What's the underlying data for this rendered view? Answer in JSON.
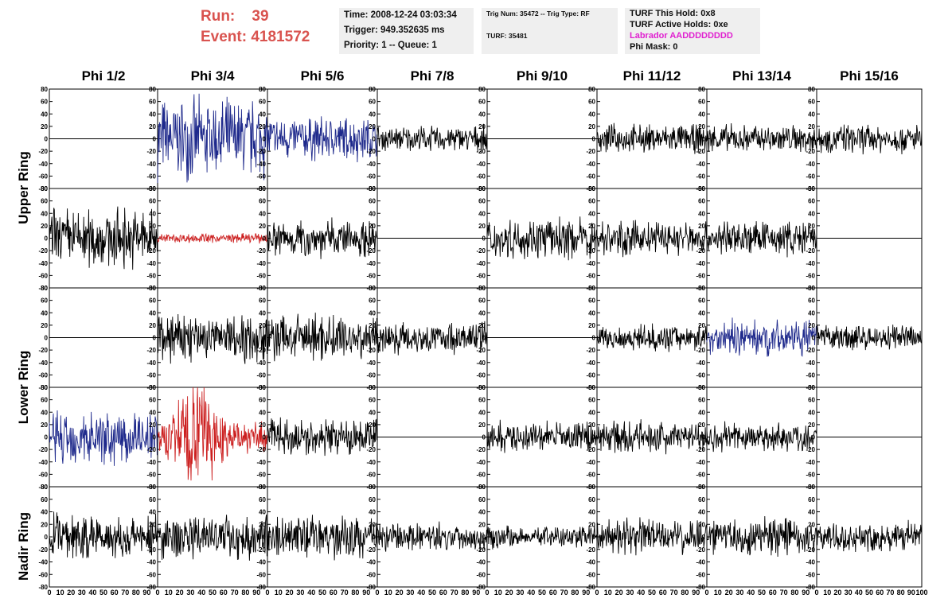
{
  "header": {
    "run_label": "Run:",
    "run_value": "39",
    "event_label": "Event:",
    "event_value": "4181572",
    "time": "Time: 2008-12-24 03:03:34",
    "trigger": "Trigger: 949.352635 ms",
    "priority": "Priority: 1 -- Queue: 1",
    "trig_num": "Trig Num: 35472 -- Trig Type: RF",
    "turf": "TURF: 35481",
    "turf_this_hold": "TURF This Hold: 0x8",
    "turf_active_holds": "TURF Active Holds: 0xe",
    "labrador": "Labrador AADDDDDDDD",
    "phi_mask": "Phi Mask: 0"
  },
  "columns": [
    "Phi 1/2",
    "Phi 3/4",
    "Phi 5/6",
    "Phi 7/8",
    "Phi 9/10",
    "Phi 11/12",
    "Phi 13/14",
    "Phi 15/16"
  ],
  "row_labels": [
    "Upper Ring",
    "Lower Ring",
    "Nadir Ring"
  ],
  "colors": {
    "black": "#000000",
    "blue": "#1f2a8c",
    "red": "#cc2020",
    "title_red": "#d9534f",
    "magenta": "#e020d0"
  },
  "chart_data": {
    "type": "line",
    "x_range": [
      0,
      100
    ],
    "ylim": [
      -80,
      80
    ],
    "y_ticks": [
      -80,
      -60,
      -40,
      -20,
      0,
      20,
      40,
      60,
      80
    ],
    "x_tick_labels": [
      "0",
      "10",
      "20",
      "30",
      "40",
      "50",
      "60",
      "70",
      "80",
      "90",
      "100"
    ],
    "panels": [
      [
        {
          "c": "black",
          "amp": 0
        },
        {
          "c": "blue",
          "amp": 50
        },
        {
          "c": "blue",
          "amp": 28
        },
        {
          "c": "black",
          "amp": 16
        },
        {
          "c": "black",
          "amp": 0
        },
        {
          "c": "black",
          "amp": 18
        },
        {
          "c": "black",
          "amp": 18
        },
        {
          "c": "black",
          "amp": 18
        }
      ],
      [
        {
          "c": "black",
          "amp": 38
        },
        {
          "c": "red",
          "amp": 6
        },
        {
          "c": "black",
          "amp": 24
        },
        {
          "c": "black",
          "amp": 0
        },
        {
          "c": "black",
          "amp": 25
        },
        {
          "c": "black",
          "amp": 22
        },
        {
          "c": "black",
          "amp": 22
        },
        {
          "c": "black",
          "amp": 0
        }
      ],
      [
        {
          "c": "black",
          "amp": 0
        },
        {
          "c": "black",
          "amp": 32
        },
        {
          "c": "black",
          "amp": 30
        },
        {
          "c": "black",
          "amp": 20
        },
        {
          "c": "black",
          "amp": 0
        },
        {
          "c": "black",
          "amp": 16
        },
        {
          "c": "blue",
          "amp": 22
        },
        {
          "c": "black",
          "amp": 16
        }
      ],
      [
        {
          "c": "blue",
          "amp": 35
        },
        {
          "c": "red",
          "amp": 55
        },
        {
          "c": "black",
          "amp": 22
        },
        {
          "c": "black",
          "amp": 0
        },
        {
          "c": "black",
          "amp": 20
        },
        {
          "c": "black",
          "amp": 20
        },
        {
          "c": "black",
          "amp": 20
        },
        {
          "c": "black",
          "amp": 0
        }
      ],
      [
        {
          "c": "black",
          "amp": 30
        },
        {
          "c": "black",
          "amp": 28
        },
        {
          "c": "black",
          "amp": 26
        },
        {
          "c": "black",
          "amp": 18
        },
        {
          "c": "black",
          "amp": 14
        },
        {
          "c": "black",
          "amp": 22
        },
        {
          "c": "black",
          "amp": 24
        },
        {
          "c": "black",
          "amp": 18
        }
      ]
    ]
  }
}
